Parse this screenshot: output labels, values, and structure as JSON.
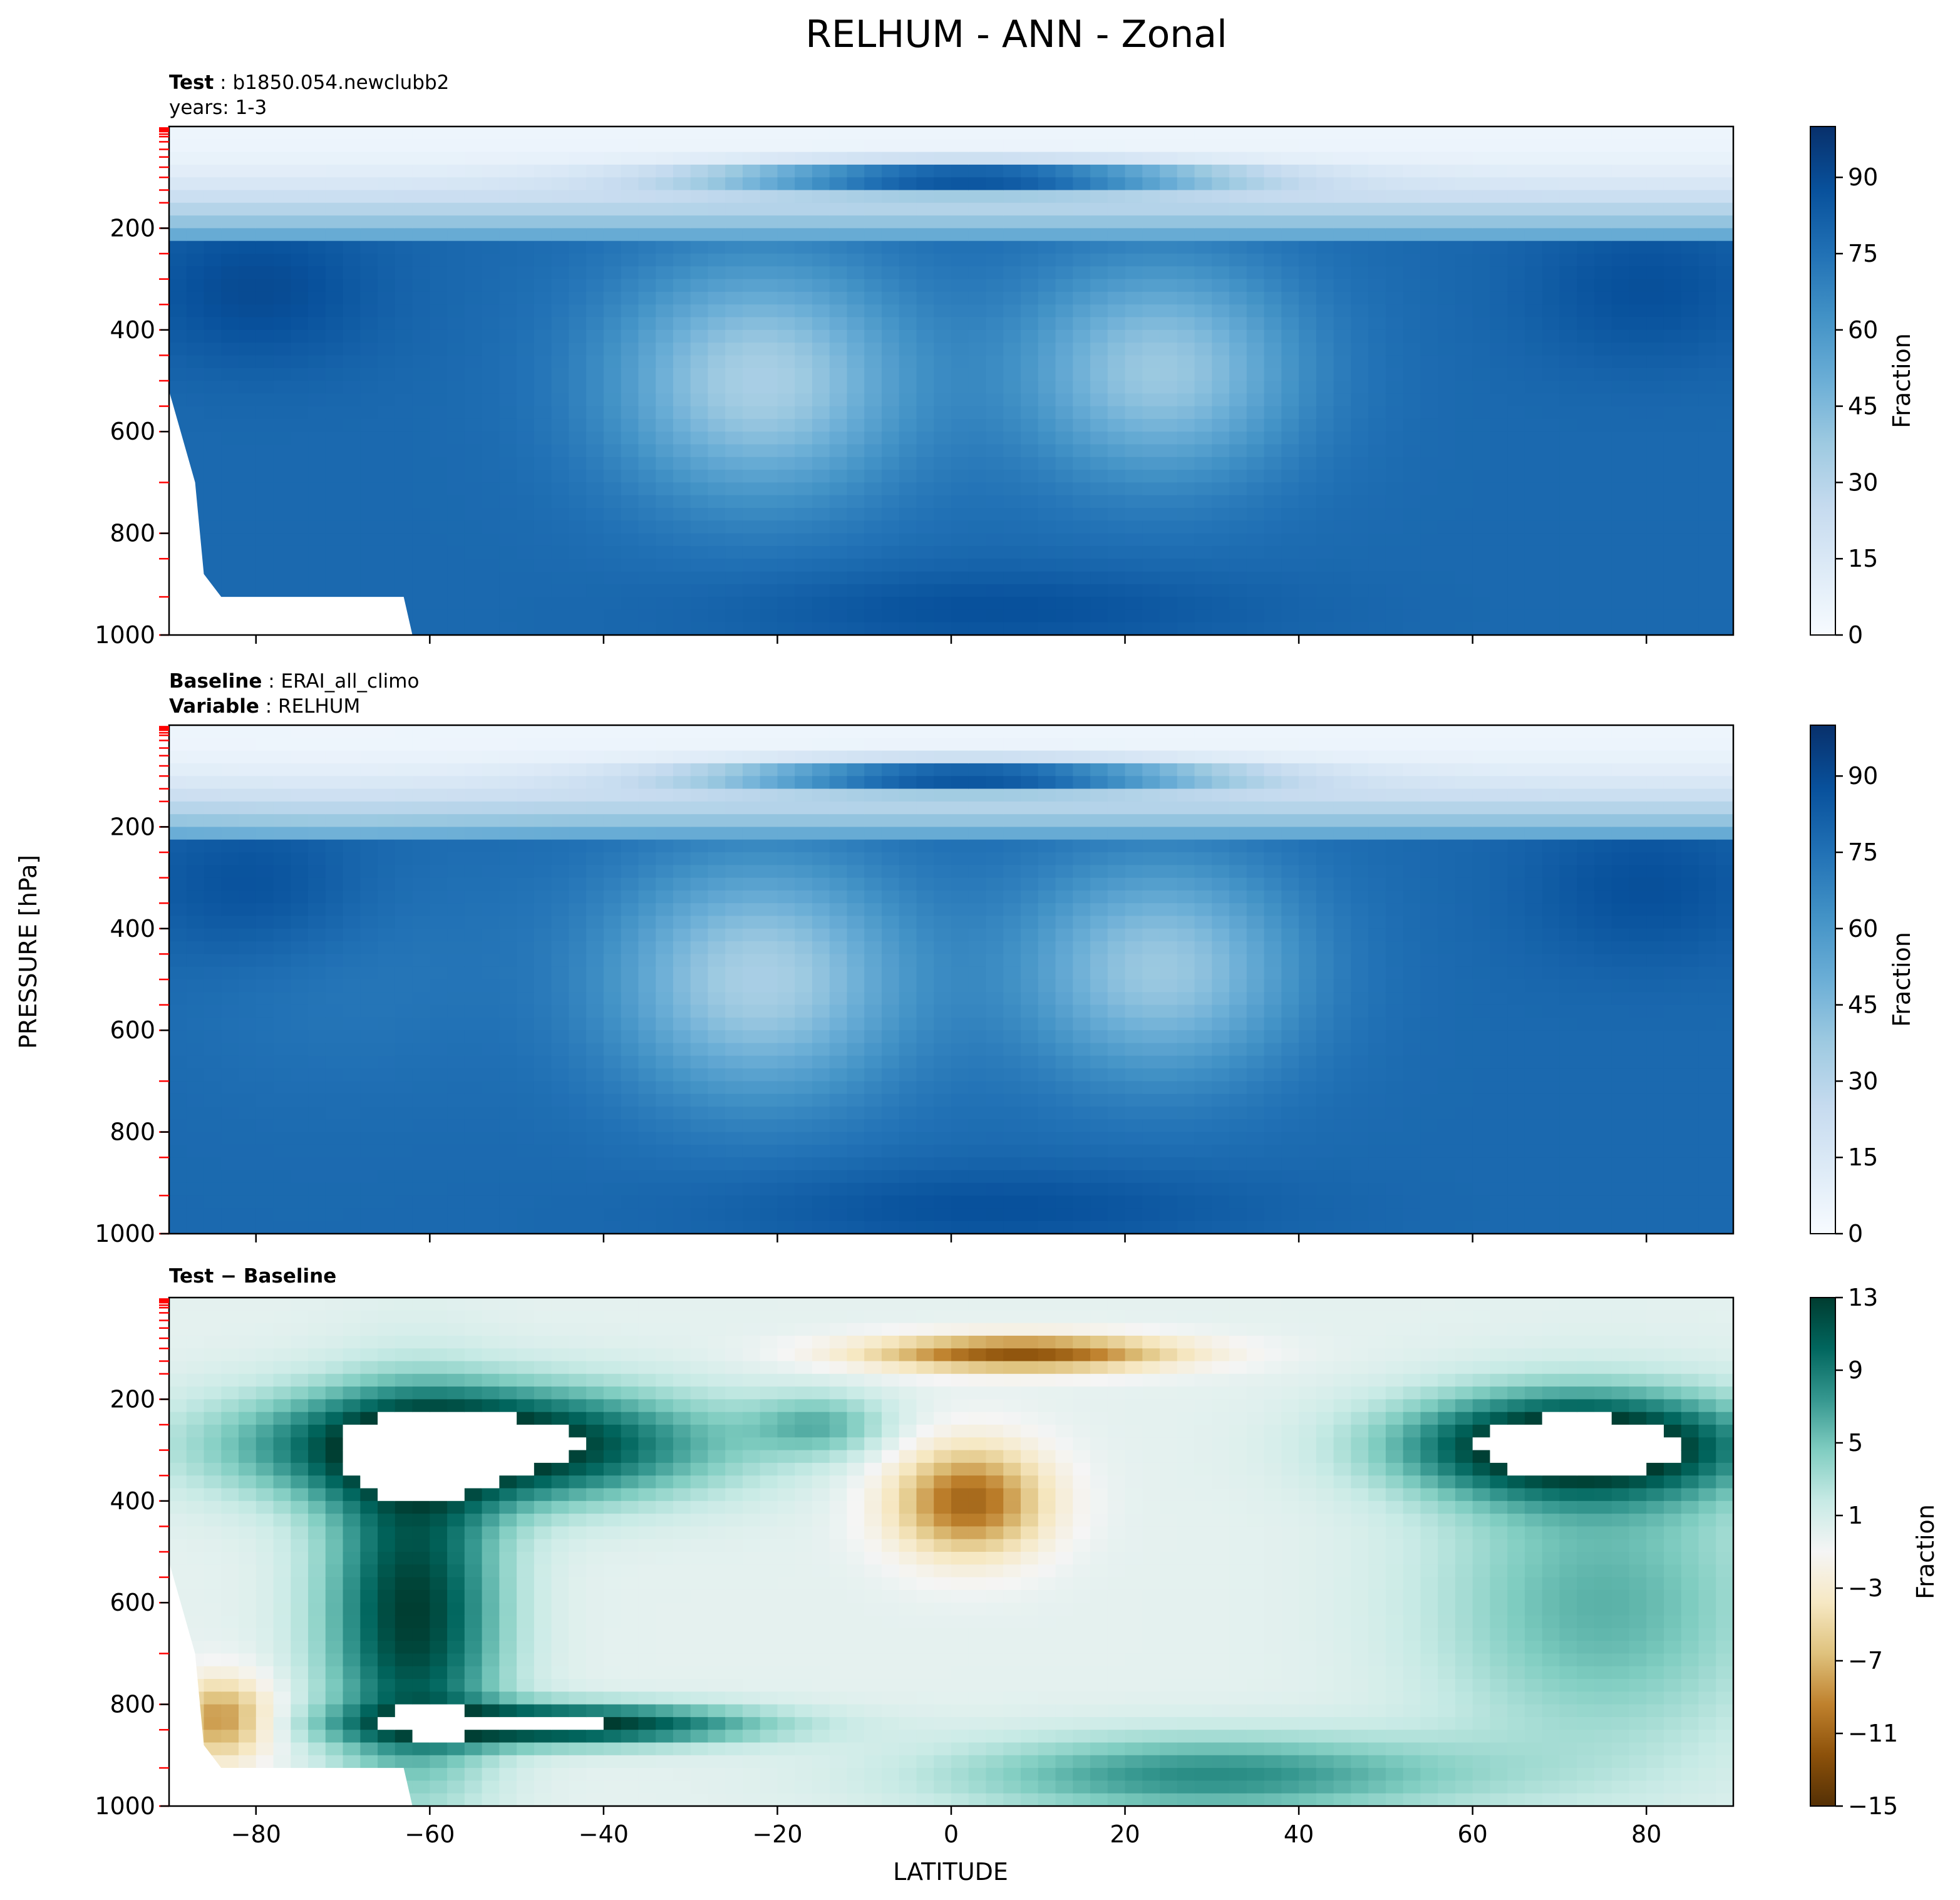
{
  "figure": {
    "title": "RELHUM - ANN - Zonal",
    "ylabel": "PRESSURE [hPa]",
    "xlabel": "LATITUDE"
  },
  "chart_data": [
    {
      "type": "heatmap",
      "id": "test",
      "header": [
        {
          "bold": "Test",
          "sep": " : ",
          "text": "b1850.054.newclubb2"
        },
        {
          "bold": "",
          "sep": "",
          "text": "years: 1-3"
        }
      ],
      "x_ticks": [
        -80,
        -60,
        -40,
        -20,
        0,
        20,
        40,
        60,
        80
      ],
      "x_tick_labels_shown": false,
      "xlim": [
        -90,
        90
      ],
      "y_ticks": [
        200,
        400,
        600,
        800,
        1000
      ],
      "ylim": [
        0,
        1000
      ],
      "y_inverted": true,
      "colorbar": {
        "label": "Fraction",
        "ticks": [
          0,
          15,
          30,
          45,
          60,
          75,
          90
        ],
        "range": [
          0,
          100
        ],
        "colormap": "Blues"
      }
    },
    {
      "type": "heatmap",
      "id": "baseline",
      "header": [
        {
          "bold": "Baseline",
          "sep": " : ",
          "text": "ERAI_all_climo"
        },
        {
          "bold": "Variable",
          "sep": " : ",
          "text": "RELHUM"
        }
      ],
      "x_ticks": [
        -80,
        -60,
        -40,
        -20,
        0,
        20,
        40,
        60,
        80
      ],
      "x_tick_labels_shown": false,
      "xlim": [
        -90,
        90
      ],
      "y_ticks": [
        200,
        400,
        600,
        800,
        1000
      ],
      "ylim": [
        0,
        1000
      ],
      "y_inverted": true,
      "colorbar": {
        "label": "Fraction",
        "ticks": [
          0,
          15,
          30,
          45,
          60,
          75,
          90
        ],
        "range": [
          0,
          100
        ],
        "colormap": "Blues"
      }
    },
    {
      "type": "heatmap",
      "id": "diff",
      "header": [
        {
          "bold": "Test − Baseline",
          "sep": "",
          "text": ""
        }
      ],
      "x_ticks": [
        -80,
        -60,
        -40,
        -20,
        0,
        20,
        40,
        60,
        80
      ],
      "x_tick_labels_shown": true,
      "xlim": [
        -90,
        90
      ],
      "y_ticks": [
        200,
        400,
        600,
        800,
        1000
      ],
      "ylim": [
        0,
        1000
      ],
      "y_inverted": true,
      "colorbar": {
        "label": "Fraction",
        "ticks": [
          -15,
          -11,
          -7,
          -3,
          1,
          5,
          9,
          13
        ],
        "range": [
          -15,
          13
        ],
        "colormap": "BrBG"
      }
    }
  ],
  "colors": {
    "blues": [
      "#f7fbff",
      "#deebf7",
      "#c6dbef",
      "#9ecae1",
      "#6baed6",
      "#4292c6",
      "#2171b5",
      "#08519c",
      "#08306b"
    ],
    "brbg": [
      "#543005",
      "#8c510a",
      "#bf812d",
      "#dfc27d",
      "#f6e8c3",
      "#f5f5f5",
      "#c7eae5",
      "#80cdc1",
      "#35978f",
      "#01665e",
      "#003c30"
    ],
    "model_level_marks": "#ff0000"
  }
}
